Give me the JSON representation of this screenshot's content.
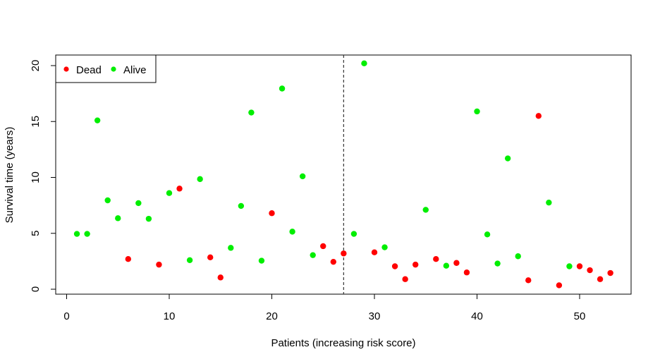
{
  "chart_data": {
    "type": "scatter",
    "xlabel": "Patients (increasing risk score)",
    "ylabel": "Survival time (years)",
    "xlim": [
      0,
      53
    ],
    "ylim": [
      0,
      20.3
    ],
    "x_ticks": [
      "0",
      "10",
      "20",
      "30",
      "40",
      "50"
    ],
    "y_ticks": [
      "0",
      "5",
      "10",
      "15",
      "20"
    ],
    "cutoff_x": 27,
    "grid": false,
    "legend_position": "top-left",
    "series": [
      {
        "name": "Dead",
        "color": "#ff0000",
        "points": [
          {
            "x": 6,
            "y": 2.7
          },
          {
            "x": 9,
            "y": 2.2
          },
          {
            "x": 11,
            "y": 9.0
          },
          {
            "x": 14,
            "y": 2.85
          },
          {
            "x": 15,
            "y": 1.05
          },
          {
            "x": 20,
            "y": 6.8
          },
          {
            "x": 25,
            "y": 3.85
          },
          {
            "x": 26,
            "y": 2.45
          },
          {
            "x": 27,
            "y": 3.2
          },
          {
            "x": 30,
            "y": 3.3
          },
          {
            "x": 32,
            "y": 2.05
          },
          {
            "x": 33,
            "y": 0.9
          },
          {
            "x": 34,
            "y": 2.2
          },
          {
            "x": 36,
            "y": 2.7
          },
          {
            "x": 38,
            "y": 2.35
          },
          {
            "x": 39,
            "y": 1.5
          },
          {
            "x": 45,
            "y": 0.8
          },
          {
            "x": 46,
            "y": 15.5
          },
          {
            "x": 48,
            "y": 0.35
          },
          {
            "x": 50,
            "y": 2.05
          },
          {
            "x": 51,
            "y": 1.7
          },
          {
            "x": 52,
            "y": 0.9
          },
          {
            "x": 53,
            "y": 1.45
          }
        ]
      },
      {
        "name": "Alive",
        "color": "#00ee00",
        "points": [
          {
            "x": 1,
            "y": 4.95
          },
          {
            "x": 2,
            "y": 4.95
          },
          {
            "x": 3,
            "y": 15.1
          },
          {
            "x": 4,
            "y": 7.95
          },
          {
            "x": 5,
            "y": 6.35
          },
          {
            "x": 7,
            "y": 7.7
          },
          {
            "x": 8,
            "y": 6.3
          },
          {
            "x": 10,
            "y": 8.6
          },
          {
            "x": 12,
            "y": 2.6
          },
          {
            "x": 13,
            "y": 9.85
          },
          {
            "x": 16,
            "y": 3.7
          },
          {
            "x": 17,
            "y": 7.45
          },
          {
            "x": 18,
            "y": 15.8
          },
          {
            "x": 19,
            "y": 2.55
          },
          {
            "x": 21,
            "y": 17.95
          },
          {
            "x": 22,
            "y": 5.15
          },
          {
            "x": 23,
            "y": 10.1
          },
          {
            "x": 24,
            "y": 3.05
          },
          {
            "x": 28,
            "y": 4.95
          },
          {
            "x": 29,
            "y": 20.2
          },
          {
            "x": 31,
            "y": 3.75
          },
          {
            "x": 35,
            "y": 7.1
          },
          {
            "x": 37,
            "y": 2.1
          },
          {
            "x": 40,
            "y": 15.9
          },
          {
            "x": 41,
            "y": 4.9
          },
          {
            "x": 42,
            "y": 2.3
          },
          {
            "x": 43,
            "y": 11.7
          },
          {
            "x": 44,
            "y": 2.95
          },
          {
            "x": 47,
            "y": 7.75
          },
          {
            "x": 49,
            "y": 2.05
          }
        ]
      }
    ]
  }
}
